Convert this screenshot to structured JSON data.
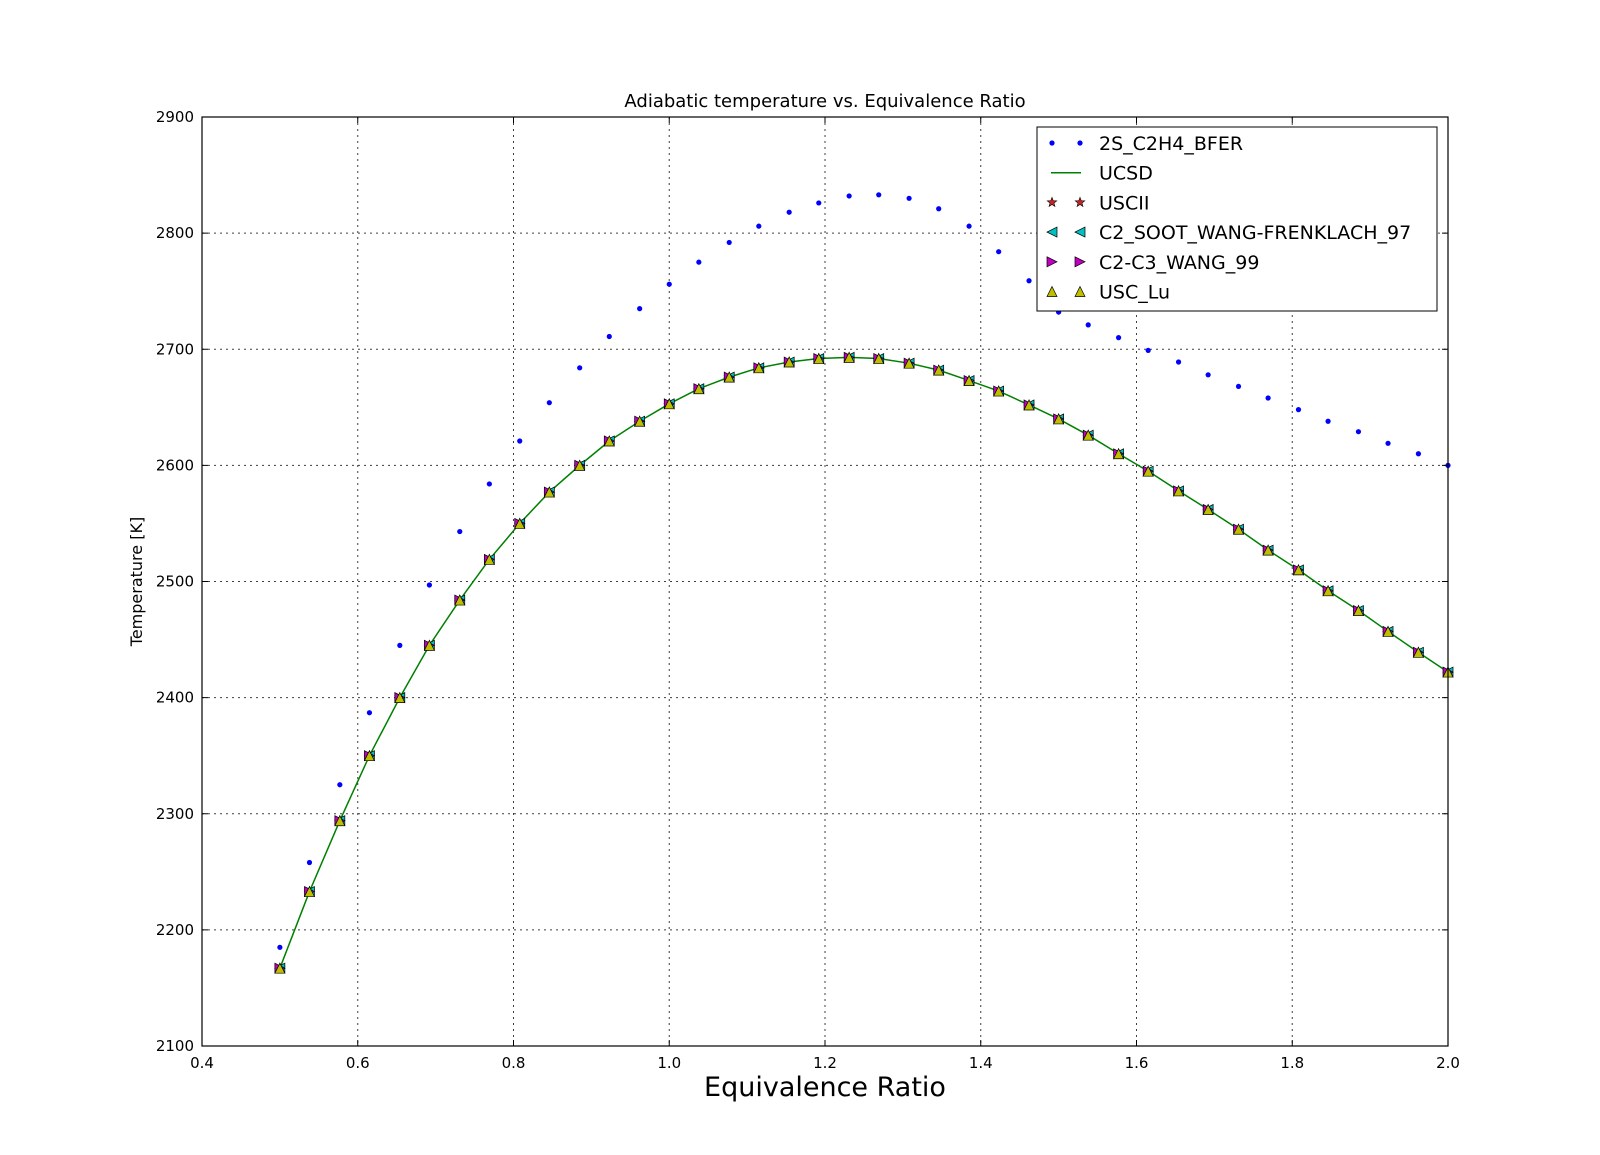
{
  "chart_data": {
    "type": "line",
    "title": "Adiabatic temperature vs. Equivalence Ratio",
    "xlabel": "Equivalence Ratio",
    "ylabel": "Temperature [K]",
    "xlim": [
      0.4,
      2.0
    ],
    "ylim": [
      2100,
      2900
    ],
    "xticks": [
      "0.4",
      "0.6",
      "0.8",
      "1.0",
      "1.2",
      "1.4",
      "1.6",
      "1.8",
      "2.0"
    ],
    "yticks": [
      "2100",
      "2200",
      "2300",
      "2400",
      "2500",
      "2600",
      "2700",
      "2800",
      "2900"
    ],
    "grid": true,
    "legend_position": "top-right",
    "x": [
      0.5,
      0.538,
      0.577,
      0.615,
      0.654,
      0.692,
      0.731,
      0.769,
      0.808,
      0.846,
      0.885,
      0.923,
      0.962,
      1.0,
      1.038,
      1.077,
      1.115,
      1.154,
      1.192,
      1.231,
      1.269,
      1.308,
      1.346,
      1.385,
      1.423,
      1.462,
      1.5,
      1.538,
      1.577,
      1.615,
      1.654,
      1.692,
      1.731,
      1.769,
      1.808,
      1.846,
      1.885,
      1.923,
      1.962,
      2.0
    ],
    "series": [
      {
        "name": "2S_C2H4_BFER",
        "style": "dots",
        "color": "#0000ff",
        "values": [
          2185,
          2258,
          2325,
          2387,
          2445,
          2497,
          2543,
          2584,
          2621,
          2654,
          2684,
          2711,
          2735,
          2756,
          2775,
          2792,
          2806,
          2818,
          2826,
          2832,
          2833,
          2830,
          2821,
          2806,
          2784,
          2759,
          2732,
          2721,
          2710,
          2699,
          2689,
          2678,
          2668,
          2658,
          2648,
          2638,
          2629,
          2619,
          2610,
          2600
        ]
      },
      {
        "name": "UCSD",
        "style": "line",
        "color": "#008000",
        "values": [
          2167,
          2233,
          2294,
          2350,
          2400,
          2445,
          2484,
          2519,
          2550,
          2577,
          2600,
          2621,
          2638,
          2653,
          2666,
          2676,
          2684,
          2689,
          2692,
          2693,
          2692,
          2688,
          2682,
          2673,
          2664,
          2652,
          2640,
          2626,
          2610,
          2595,
          2578,
          2562,
          2545,
          2527,
          2510,
          2492,
          2475,
          2457,
          2439,
          2422
        ]
      },
      {
        "name": "USCII",
        "style": "star",
        "color": "#cc2222",
        "values": [
          2167,
          2233,
          2294,
          2350,
          2400,
          2445,
          2484,
          2519,
          2550,
          2577,
          2600,
          2621,
          2638,
          2653,
          2666,
          2676,
          2684,
          2689,
          2692,
          2693,
          2692,
          2688,
          2682,
          2673,
          2664,
          2652,
          2640,
          2626,
          2610,
          2595,
          2578,
          2562,
          2545,
          2527,
          2510,
          2492,
          2475,
          2457,
          2439,
          2422
        ]
      },
      {
        "name": "C2_SOOT_WANG-FRENKLACH_97",
        "style": "triangle-left",
        "color": "#00bfbf",
        "values": [
          2167,
          2233,
          2294,
          2350,
          2400,
          2445,
          2484,
          2519,
          2550,
          2577,
          2600,
          2621,
          2638,
          2653,
          2666,
          2676,
          2684,
          2689,
          2692,
          2693,
          2692,
          2688,
          2682,
          2673,
          2664,
          2652,
          2640,
          2626,
          2610,
          2595,
          2578,
          2562,
          2545,
          2527,
          2510,
          2492,
          2475,
          2457,
          2439,
          2422
        ]
      },
      {
        "name": "C2-C3_WANG_99",
        "style": "triangle-right",
        "color": "#bf00bf",
        "values": [
          2167,
          2233,
          2294,
          2350,
          2400,
          2445,
          2484,
          2519,
          2550,
          2577,
          2600,
          2621,
          2638,
          2653,
          2666,
          2676,
          2684,
          2689,
          2692,
          2693,
          2692,
          2688,
          2682,
          2673,
          2664,
          2652,
          2640,
          2626,
          2610,
          2595,
          2578,
          2562,
          2545,
          2527,
          2510,
          2492,
          2475,
          2457,
          2439,
          2422
        ]
      },
      {
        "name": "USC_Lu",
        "style": "triangle-up",
        "color": "#bfbf00",
        "values": [
          2167,
          2233,
          2294,
          2350,
          2400,
          2445,
          2484,
          2519,
          2550,
          2577,
          2600,
          2621,
          2638,
          2653,
          2666,
          2676,
          2684,
          2689,
          2692,
          2693,
          2692,
          2688,
          2682,
          2673,
          2664,
          2652,
          2640,
          2626,
          2610,
          2595,
          2578,
          2562,
          2545,
          2527,
          2510,
          2492,
          2475,
          2457,
          2439,
          2422
        ]
      }
    ]
  }
}
